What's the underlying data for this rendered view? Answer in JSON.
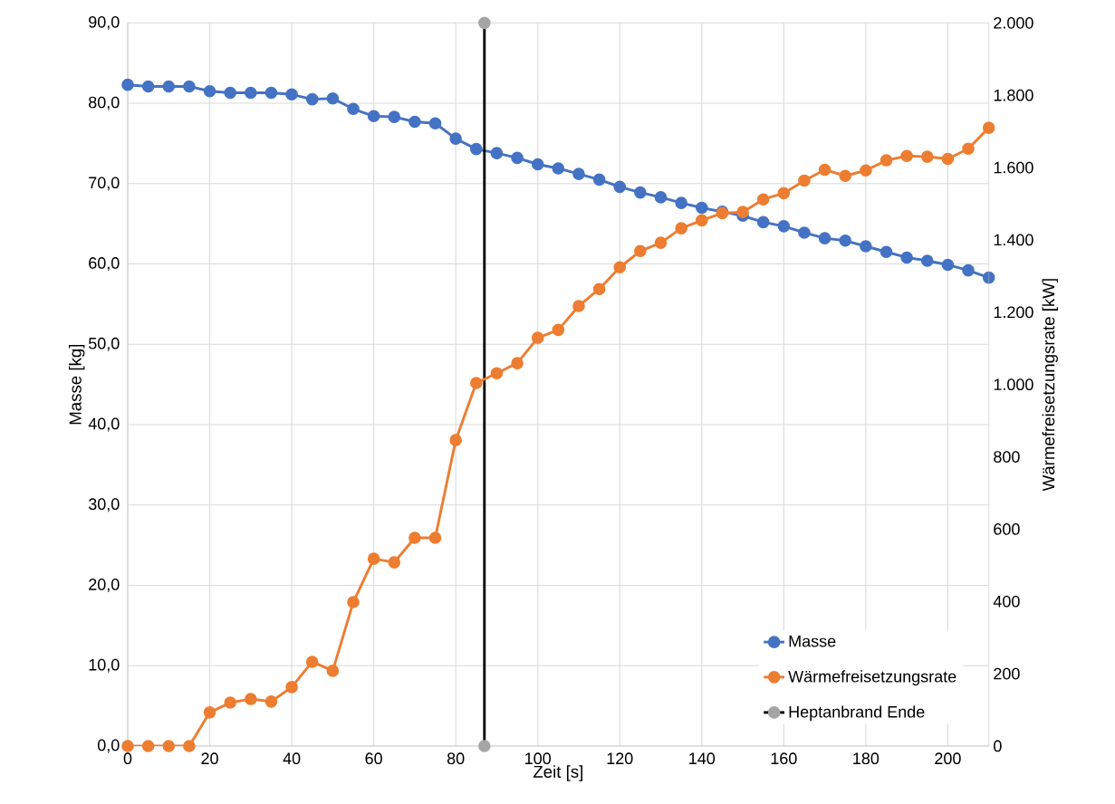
{
  "chart_data": {
    "type": "line",
    "xlabel": "Zeit [s]",
    "ylabel": "Masse  [kg]",
    "y2label": "Wärmefreisetzungsrate [kW]",
    "x": [
      0,
      5,
      10,
      15,
      20,
      25,
      30,
      35,
      40,
      45,
      50,
      55,
      60,
      65,
      70,
      75,
      80,
      85,
      90,
      95,
      100,
      105,
      110,
      115,
      120,
      125,
      130,
      135,
      140,
      145,
      150,
      155,
      160,
      165,
      170,
      175,
      180,
      185,
      190,
      195,
      200,
      205,
      210
    ],
    "series": [
      {
        "name": "Masse",
        "color": "#4472c4",
        "values": [
          82.3,
          82.1,
          82.1,
          82.1,
          81.5,
          81.3,
          81.3,
          81.3,
          81.1,
          80.5,
          80.6,
          79.3,
          78.4,
          78.3,
          77.7,
          77.5,
          75.6,
          74.3,
          73.8,
          73.2,
          72.4,
          71.9,
          71.2,
          70.5,
          69.6,
          68.9,
          68.3,
          67.6,
          67.0,
          66.5,
          66.0,
          65.2,
          64.7,
          63.9,
          63.2,
          62.9,
          62.2,
          61.5,
          60.8,
          60.4,
          59.9,
          59.2,
          58.3
        ]
      },
      {
        "name": "Wärmefreisetzungsrate",
        "color": "#ed7d31",
        "axis": "y2",
        "values": [
          0,
          0,
          0,
          0,
          93,
          120,
          130,
          123,
          163,
          233,
          208,
          398,
          518,
          508,
          576,
          576,
          846,
          1004,
          1031,
          1059,
          1129,
          1151,
          1217,
          1264,
          1324,
          1369,
          1392,
          1432,
          1454,
          1474,
          1477,
          1512,
          1529,
          1564,
          1594,
          1577,
          1592,
          1620,
          1632,
          1630,
          1624,
          1652,
          1710
        ]
      },
      {
        "name": "Heptanbrand Ende",
        "color": "#000000",
        "x": [
          87,
          87
        ],
        "values": [
          0,
          90
        ]
      }
    ],
    "xlim": [
      0,
      210
    ],
    "xticks": [
      0,
      20,
      40,
      60,
      80,
      100,
      120,
      140,
      160,
      180,
      200
    ],
    "ylim": [
      0,
      90
    ],
    "yticks": [
      {
        "value": 0,
        "label": "0,0"
      },
      {
        "value": 10,
        "label": "10,0"
      },
      {
        "value": 20,
        "label": "20,0"
      },
      {
        "value": 30,
        "label": "30,0"
      },
      {
        "value": 40,
        "label": "40,0"
      },
      {
        "value": 50,
        "label": "50,0"
      },
      {
        "value": 60,
        "label": "60,0"
      },
      {
        "value": 70,
        "label": "70,0"
      },
      {
        "value": 80,
        "label": "80,0"
      },
      {
        "value": 90,
        "label": "90,0"
      }
    ],
    "y2lim": [
      0,
      2000
    ],
    "y2ticks": [
      0,
      200,
      400,
      600,
      800,
      {
        "value": 1000,
        "label": "1.000"
      },
      {
        "value": 1200,
        "label": "1.200"
      },
      {
        "value": 1400,
        "label": "1.400"
      },
      {
        "value": 1600,
        "label": "1.600"
      },
      {
        "value": 1800,
        "label": "1.800"
      },
      {
        "value": 2000,
        "label": "2.000"
      }
    ],
    "grid": true,
    "legend": "bottom right",
    "marker": "circle",
    "line_style": "solid"
  }
}
